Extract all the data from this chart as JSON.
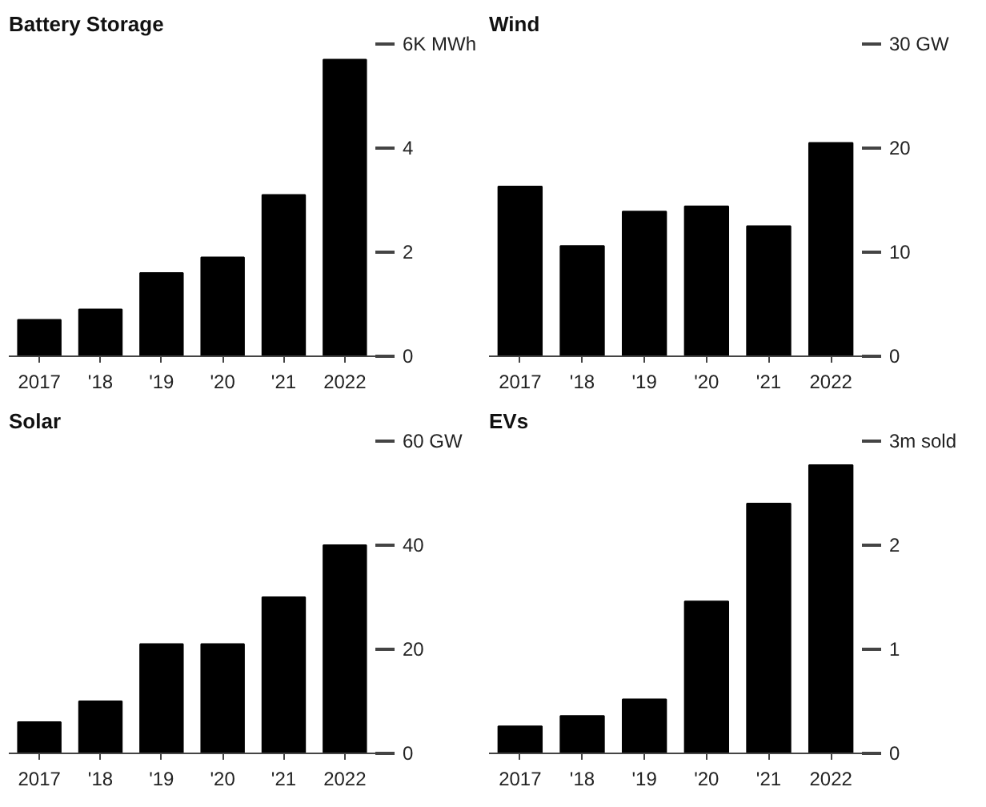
{
  "chart_data": [
    {
      "type": "bar",
      "title": "Battery Storage",
      "categories": [
        "2017",
        "'18",
        "'19",
        "'20",
        "'21",
        "2022"
      ],
      "values": [
        0.7,
        0.9,
        1.6,
        1.9,
        3.1,
        5.7
      ],
      "color": "#000000",
      "ylim": [
        0,
        6
      ],
      "yticks": [
        0,
        2,
        4,
        {
          "value": 6,
          "label": "6K MWh"
        }
      ]
    },
    {
      "type": "bar",
      "title": "Wind",
      "categories": [
        "2017",
        "'18",
        "'19",
        "'20",
        "'21",
        "2022"
      ],
      "values": [
        16.3,
        10.6,
        13.9,
        14.4,
        12.5,
        20.5
      ],
      "color": "#000000",
      "ylim": [
        0,
        30
      ],
      "yticks": [
        0,
        10,
        20,
        {
          "value": 30,
          "label": "30 GW"
        }
      ]
    },
    {
      "type": "bar",
      "title": "Solar",
      "categories": [
        "2017",
        "'18",
        "'19",
        "'20",
        "'21",
        "2022"
      ],
      "values": [
        6,
        10,
        21,
        21,
        30,
        40
      ],
      "color": "#000000",
      "ylim": [
        0,
        60
      ],
      "yticks": [
        0,
        20,
        40,
        {
          "value": 60,
          "label": "60 GW"
        }
      ]
    },
    {
      "type": "bar",
      "title": "EVs",
      "categories": [
        "2017",
        "'18",
        "'19",
        "'20",
        "'21",
        "2022"
      ],
      "values": [
        0.26,
        0.36,
        0.52,
        1.46,
        2.4,
        2.77
      ],
      "color": "#000000",
      "ylim": [
        0,
        3
      ],
      "yticks": [
        0,
        1,
        2,
        {
          "value": 3,
          "label": "3m sold"
        }
      ]
    }
  ]
}
